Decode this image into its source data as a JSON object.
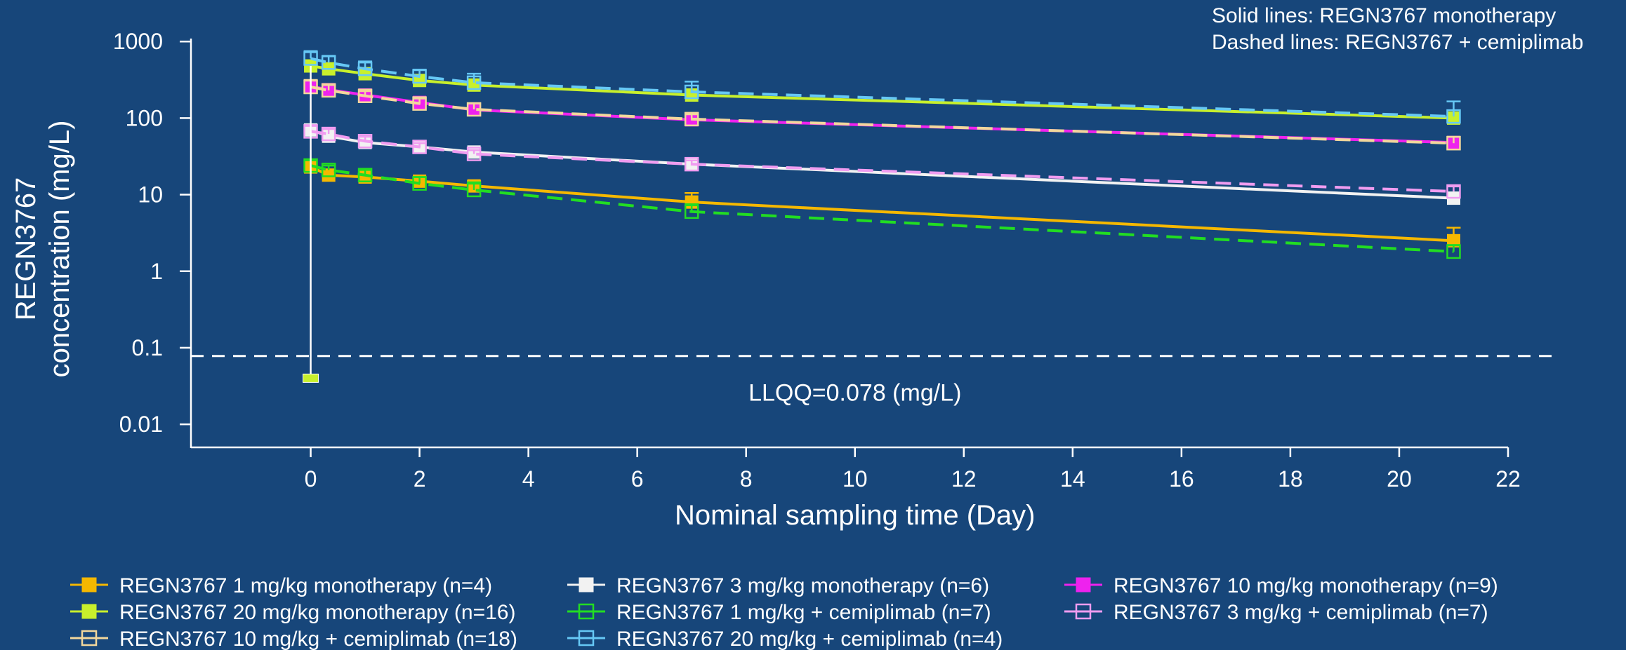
{
  "chart_data": {
    "type": "line",
    "title": "",
    "xlabel": "Nominal sampling time (Day)",
    "ylabel": "REGN3767 concentration (mg/L)",
    "ylabel_lines": [
      "REGN3767",
      "concentration (mg/L)"
    ],
    "xlim": [
      -2.2,
      22
    ],
    "ylim": [
      0.005,
      1500
    ],
    "y_scale": "log",
    "x_ticks": [
      0,
      2,
      4,
      6,
      8,
      10,
      12,
      14,
      16,
      18,
      20,
      22
    ],
    "y_ticks": [
      {
        "value": 1000,
        "label": "1000"
      },
      {
        "value": 100,
        "label": "100"
      },
      {
        "value": 10,
        "label": "10"
      },
      {
        "value": 1,
        "label": "1"
      },
      {
        "value": 0.1,
        "label": "0.1"
      },
      {
        "value": 0.01,
        "label": "0.01"
      }
    ],
    "grid": false,
    "legend_position": "bottom",
    "annotations": {
      "solid_note": "Solid lines: REGN3767 monotherapy",
      "dashed_note": "Dashed lines: REGN3767 + cemiplimab",
      "llqq_label": "LLQQ=0.078 (mg/L)",
      "llqq_value": 0.078
    },
    "series": [
      {
        "name": "REGN3767 1 mg/kg monotherapy  (n=4)",
        "color": "#f5b800",
        "dash": false,
        "marker": "filled",
        "x": [
          0,
          0.33,
          1,
          2,
          3,
          7,
          21
        ],
        "y": [
          23,
          18,
          17,
          15,
          13,
          8,
          2.5
        ],
        "err": [
          3,
          2,
          2,
          2,
          2,
          2.5,
          1.2
        ]
      },
      {
        "name": "REGN3767 3 mg/kg monotherapy (n=6)",
        "color": "#f2f2f2",
        "dash": false,
        "marker": "filled",
        "x": [
          0,
          0.33,
          1,
          2,
          3,
          7,
          21
        ],
        "y": [
          70,
          58,
          48,
          42,
          36,
          25,
          9
        ],
        "err": [
          12,
          8,
          6,
          5,
          5,
          3,
          1
        ]
      },
      {
        "name": "REGN3767 10 mg/kg monotherapy (n=9)",
        "color": "#ee22ee",
        "dash": false,
        "marker": "filled",
        "x": [
          0,
          0.33,
          1,
          2,
          3,
          7,
          21
        ],
        "y": [
          260,
          235,
          200,
          160,
          128,
          95,
          48
        ],
        "err": [
          40,
          30,
          25,
          20,
          15,
          12,
          6
        ]
      },
      {
        "name": "REGN3767 20 mg/kg monotherapy (n=16)",
        "color": "#c8f02c",
        "dash": false,
        "marker": "filled",
        "x": [
          0,
          0.33,
          1,
          2,
          3,
          7,
          21
        ],
        "y": [
          480,
          440,
          380,
          310,
          270,
          200,
          100
        ],
        "err": [
          80,
          70,
          60,
          40,
          30,
          30,
          15
        ]
      },
      {
        "name": "REGN3767 1 mg/kg + cemiplimab (n=7)",
        "color": "#22dd22",
        "dash": true,
        "marker": "open",
        "x": [
          0,
          0.33,
          1,
          2,
          3,
          7,
          21
        ],
        "y": [
          24,
          21,
          18,
          14,
          11.5,
          6,
          1.8
        ],
        "err": [
          4,
          3,
          3,
          3,
          3,
          1.5,
          0.4
        ]
      },
      {
        "name": "REGN3767 3 mg/kg + cemiplimab (n=7)",
        "color": "#f09cf0",
        "dash": true,
        "marker": "open",
        "x": [
          0,
          0.33,
          1,
          2,
          3,
          7,
          21
        ],
        "y": [
          67,
          62,
          50,
          42,
          34,
          25,
          11
        ],
        "err": [
          12,
          10,
          7,
          5,
          4,
          3,
          1.8
        ]
      },
      {
        "name": "REGN3767 10 mg/kg + cemiplimab (n=18)",
        "color": "#f2d79c",
        "dash": true,
        "marker": "open",
        "x": [
          0,
          0.33,
          1,
          2,
          3,
          7,
          21
        ],
        "y": [
          255,
          230,
          195,
          155,
          130,
          97,
          47
        ],
        "err": [
          60,
          40,
          30,
          25,
          25,
          15,
          10
        ]
      },
      {
        "name": "REGN3767 20 mg/kg + cemiplimab (n=4)",
        "color": "#66c8f5",
        "dash": true,
        "marker": "open",
        "x": [
          0,
          0.33,
          1,
          2,
          3,
          7,
          21
        ],
        "y": [
          600,
          530,
          440,
          350,
          290,
          220,
          105
        ],
        "err": [
          150,
          120,
          110,
          80,
          90,
          80,
          60
        ]
      }
    ],
    "outlier": {
      "x": 0,
      "y": 0.04,
      "color": "#c8f02c"
    }
  }
}
